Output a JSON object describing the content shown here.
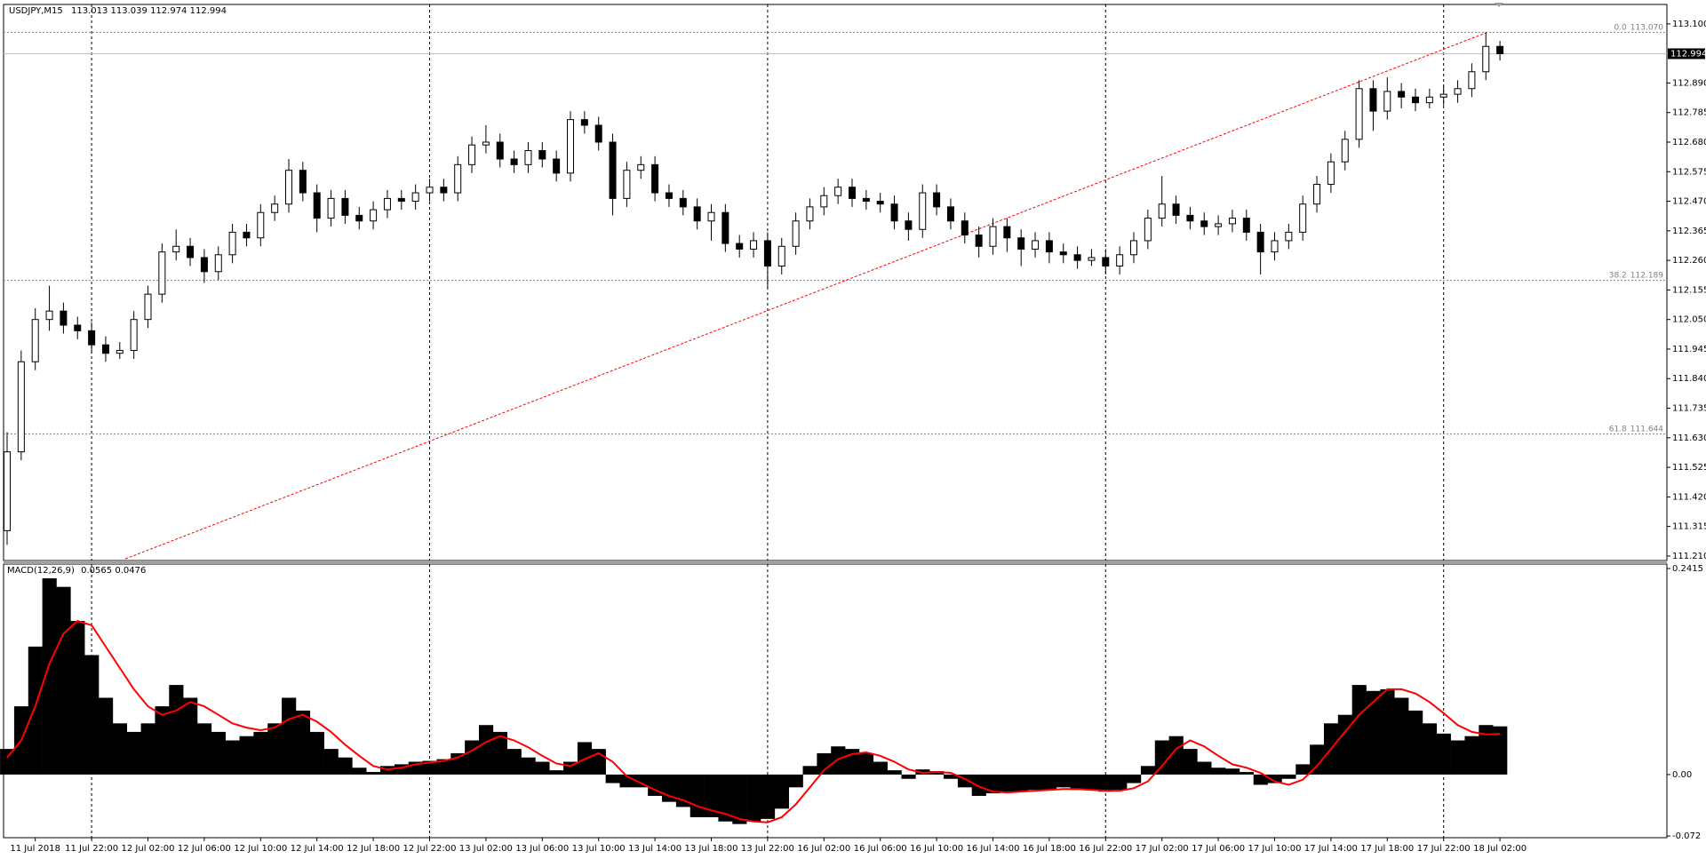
{
  "chart_data": [
    {
      "type": "candlestick",
      "symbol": "USDJPY,M15",
      "quote": [
        113.013,
        113.039,
        112.974,
        112.994
      ],
      "categories": [
        null,
        null,
        "11 Jul 2018",
        null,
        null,
        null,
        "11 Jul 22:00",
        null,
        null,
        null,
        "12 Jul 02:00",
        null,
        null,
        null,
        "12 Jul 06:00",
        null,
        null,
        null,
        "12 Jul 10:00",
        null,
        null,
        null,
        "12 Jul 14:00",
        null,
        null,
        null,
        "12 Jul 18:00",
        null,
        null,
        null,
        "12 Jul 22:00",
        null,
        null,
        null,
        "13 Jul 02:00",
        null,
        null,
        null,
        "13 Jul 06:00",
        null,
        null,
        null,
        "13 Jul 10:00",
        null,
        null,
        null,
        "13 Jul 14:00",
        null,
        null,
        null,
        "13 Jul 18:00",
        null,
        null,
        null,
        "13 Jul 22:00",
        null,
        null,
        null,
        "16 Jul 02:00",
        null,
        null,
        null,
        "16 Jul 06:00",
        null,
        null,
        null,
        "16 Jul 10:00",
        null,
        null,
        null,
        "16 Jul 14:00",
        null,
        null,
        null,
        "16 Jul 18:00",
        null,
        null,
        null,
        "16 Jul 22:00",
        null,
        null,
        null,
        "17 Jul 02:00",
        null,
        null,
        null,
        "17 Jul 06:00",
        null,
        null,
        null,
        "17 Jul 10:00",
        null,
        null,
        null,
        "17 Jul 14:00",
        null,
        null,
        null,
        "17 Jul 18:00",
        null,
        null,
        null,
        "17 Jul 22:00",
        null,
        null,
        null,
        "18 Jul 02:00"
      ],
      "open": [
        111.3,
        111.58,
        111.9,
        112.05,
        112.08,
        112.03,
        112.01,
        111.96,
        111.93,
        111.94,
        112.05,
        112.14,
        112.29,
        112.31,
        112.27,
        112.22,
        112.28,
        112.36,
        112.34,
        112.43,
        112.46,
        112.58,
        112.5,
        112.41,
        112.48,
        112.42,
        112.4,
        112.44,
        112.48,
        112.47,
        112.5,
        112.52,
        112.5,
        112.6,
        112.67,
        112.68,
        112.62,
        112.6,
        112.65,
        112.62,
        112.57,
        112.76,
        112.74,
        112.68,
        112.48,
        112.58,
        112.6,
        112.5,
        112.48,
        112.45,
        112.4,
        112.43,
        112.32,
        112.3,
        112.33,
        112.24,
        112.31,
        112.4,
        112.45,
        112.49,
        112.52,
        112.48,
        112.47,
        112.46,
        112.4,
        112.37,
        112.5,
        112.45,
        112.4,
        112.35,
        112.31,
        112.38,
        112.34,
        112.3,
        112.33,
        112.29,
        112.28,
        112.26,
        112.27,
        112.24,
        112.28,
        112.33,
        112.41,
        112.46,
        112.42,
        112.4,
        112.38,
        112.39,
        112.41,
        112.36,
        112.29,
        112.33,
        112.36,
        112.46,
        112.53,
        112.61,
        112.69,
        112.87,
        112.79,
        112.86,
        112.84,
        112.82,
        112.84,
        112.85,
        112.87,
        112.93,
        113.02
      ],
      "high": [
        111.65,
        111.94,
        112.09,
        112.17,
        112.11,
        112.06,
        112.04,
        111.99,
        111.97,
        112.08,
        112.17,
        112.32,
        112.37,
        112.34,
        112.3,
        112.31,
        112.39,
        112.39,
        112.46,
        112.49,
        112.62,
        112.61,
        112.53,
        112.51,
        112.51,
        112.45,
        112.47,
        112.51,
        112.51,
        112.53,
        112.55,
        112.55,
        112.63,
        112.7,
        112.74,
        112.71,
        112.65,
        112.68,
        112.68,
        112.65,
        112.79,
        112.79,
        112.77,
        112.71,
        112.61,
        112.63,
        112.63,
        112.53,
        112.51,
        112.48,
        112.46,
        112.46,
        112.35,
        112.36,
        112.36,
        112.34,
        112.43,
        112.48,
        112.52,
        112.55,
        112.55,
        112.51,
        112.5,
        112.49,
        112.43,
        112.53,
        112.53,
        112.48,
        112.43,
        112.38,
        112.41,
        112.41,
        112.37,
        112.36,
        112.36,
        112.32,
        112.31,
        112.3,
        112.3,
        112.31,
        112.36,
        112.44,
        112.56,
        112.49,
        112.45,
        112.43,
        112.42,
        112.44,
        112.44,
        112.39,
        112.36,
        112.39,
        112.49,
        112.56,
        112.64,
        112.72,
        112.9,
        112.9,
        112.91,
        112.89,
        112.87,
        112.87,
        112.88,
        112.9,
        112.96,
        113.07,
        113.04
      ],
      "low": [
        111.25,
        111.55,
        111.87,
        112.01,
        112.0,
        111.98,
        111.93,
        111.9,
        111.91,
        111.91,
        112.02,
        112.11,
        112.26,
        112.24,
        112.18,
        112.19,
        112.25,
        112.31,
        112.31,
        112.4,
        112.43,
        112.47,
        112.36,
        112.38,
        112.39,
        112.37,
        112.37,
        112.41,
        112.44,
        112.44,
        112.47,
        112.47,
        112.47,
        112.57,
        112.64,
        112.59,
        112.57,
        112.57,
        112.59,
        112.54,
        112.54,
        112.71,
        112.65,
        112.42,
        112.45,
        112.55,
        112.47,
        112.45,
        112.42,
        112.37,
        112.33,
        112.29,
        112.27,
        112.27,
        112.16,
        112.21,
        112.28,
        112.37,
        112.42,
        112.46,
        112.45,
        112.44,
        112.43,
        112.37,
        112.33,
        112.34,
        112.42,
        112.37,
        112.32,
        112.27,
        112.28,
        112.29,
        112.24,
        112.27,
        112.25,
        112.25,
        112.23,
        112.24,
        112.21,
        112.21,
        112.25,
        112.3,
        112.38,
        112.39,
        112.37,
        112.35,
        112.35,
        112.36,
        112.33,
        112.21,
        112.26,
        112.3,
        112.33,
        112.43,
        112.5,
        112.58,
        112.66,
        112.72,
        112.76,
        112.8,
        112.79,
        112.8,
        112.81,
        112.82,
        112.84,
        112.9,
        112.97
      ],
      "close": [
        111.58,
        111.9,
        112.05,
        112.08,
        112.03,
        112.01,
        111.96,
        111.93,
        111.94,
        112.05,
        112.14,
        112.29,
        112.31,
        112.27,
        112.22,
        112.28,
        112.36,
        112.34,
        112.43,
        112.46,
        112.58,
        112.5,
        112.41,
        112.48,
        112.42,
        112.4,
        112.44,
        112.48,
        112.47,
        112.5,
        112.52,
        112.5,
        112.6,
        112.67,
        112.68,
        112.62,
        112.6,
        112.65,
        112.62,
        112.57,
        112.76,
        112.74,
        112.68,
        112.48,
        112.58,
        112.6,
        112.5,
        112.48,
        112.45,
        112.4,
        112.43,
        112.32,
        112.3,
        112.33,
        112.24,
        112.31,
        112.4,
        112.45,
        112.49,
        112.52,
        112.48,
        112.47,
        112.46,
        112.4,
        112.37,
        112.5,
        112.45,
        112.4,
        112.35,
        112.31,
        112.38,
        112.34,
        112.3,
        112.33,
        112.29,
        112.28,
        112.26,
        112.27,
        112.24,
        112.28,
        112.33,
        112.41,
        112.46,
        112.42,
        112.4,
        112.38,
        112.39,
        112.41,
        112.36,
        112.29,
        112.33,
        112.36,
        112.46,
        112.53,
        112.61,
        112.69,
        112.87,
        112.79,
        112.86,
        112.84,
        112.82,
        112.84,
        112.85,
        112.87,
        112.93,
        113.02,
        112.994
      ],
      "up_color": "#ffffff",
      "down_color": "#000000",
      "ylim": [
        111.194,
        113.169
      ],
      "yticks": [
        {
          "value": 113.1,
          "label": "113.100"
        },
        {
          "value": 112.89,
          "label": "112.890"
        },
        {
          "value": 112.785,
          "label": "112.785"
        },
        {
          "value": 112.68,
          "label": "112.680"
        },
        {
          "value": 112.575,
          "label": "112.575"
        },
        {
          "value": 112.47,
          "label": "112.470"
        },
        {
          "value": 112.365,
          "label": "112.365"
        },
        {
          "value": 112.26,
          "label": "112.260"
        },
        {
          "value": 112.155,
          "label": "112.155"
        },
        {
          "value": 112.05,
          "label": "112.050"
        },
        {
          "value": 111.945,
          "label": "111.945"
        },
        {
          "value": 111.84,
          "label": "111.840"
        },
        {
          "value": 111.735,
          "label": "111.735"
        },
        {
          "value": 111.63,
          "label": "111.630"
        },
        {
          "value": 111.525,
          "label": "111.525"
        },
        {
          "value": 111.42,
          "label": "111.420"
        },
        {
          "value": 111.315,
          "label": "111.315"
        },
        {
          "value": 111.21,
          "label": "111.210"
        }
      ],
      "current_price": 112.994,
      "fibo": [
        {
          "level": {
            "value": 0,
            "label": "0.0"
          },
          "price": {
            "value": 113.07,
            "label": "113.070"
          }
        },
        {
          "level": 38.2,
          "price": 112.189
        },
        {
          "level": 61.8,
          "price": 111.644
        }
      ],
      "trendline": {
        "x": [
          8.4,
          105.1
        ],
        "y": [
          111.2,
          113.07
        ],
        "color": "#ff0000"
      },
      "grid": true
    },
    {
      "type": "macd",
      "name": "MACD(12,26,9)",
      "readout": [
        0.0565,
        0.0476
      ],
      "series": [
        {
          "name": "MACD",
          "color": "#000000",
          "values": [
            0.03,
            0.08,
            0.15,
            0.23,
            0.22,
            0.18,
            0.14,
            0.09,
            0.06,
            0.05,
            0.06,
            0.08,
            0.105,
            0.09,
            0.06,
            0.05,
            0.04,
            0.045,
            0.05,
            0.06,
            0.09,
            0.075,
            0.05,
            0.03,
            0.02,
            0.008,
            0.003,
            0.01,
            0.012,
            0.015,
            0.016,
            0.018,
            0.025,
            0.04,
            0.058,
            0.05,
            0.03,
            0.02,
            0.015,
            0.005,
            0.015,
            0.038,
            0.03,
            -0.01,
            -0.015,
            -0.015,
            -0.025,
            -0.032,
            -0.038,
            -0.05,
            -0.05,
            -0.055,
            -0.058,
            -0.055,
            -0.052,
            -0.04,
            -0.015,
            0.01,
            0.025,
            0.033,
            0.03,
            0.025,
            0.015,
            0.005,
            -0.005,
            0.006,
            0.004,
            -0.005,
            -0.015,
            -0.025,
            -0.022,
            -0.02,
            -0.02,
            -0.018,
            -0.018,
            -0.015,
            -0.018,
            -0.018,
            -0.02,
            -0.018,
            -0.01,
            0.01,
            0.04,
            0.045,
            0.03,
            0.015,
            0.008,
            0.007,
            0.003,
            -0.012,
            -0.01,
            -0.005,
            0.012,
            0.035,
            0.06,
            0.07,
            0.105,
            0.098,
            0.1,
            0.09,
            0.075,
            0.06,
            0.048,
            0.04,
            0.045,
            0.058,
            0.0565
          ]
        },
        {
          "name": "Signal",
          "color": "#ff0000",
          "values": [
            0.02,
            0.04,
            0.08,
            0.13,
            0.165,
            0.18,
            0.175,
            0.15,
            0.125,
            0.1,
            0.08,
            0.07,
            0.075,
            0.085,
            0.08,
            0.07,
            0.06,
            0.055,
            0.052,
            0.055,
            0.065,
            0.07,
            0.062,
            0.05,
            0.035,
            0.022,
            0.01,
            0.006,
            0.008,
            0.012,
            0.014,
            0.016,
            0.02,
            0.028,
            0.038,
            0.045,
            0.04,
            0.032,
            0.022,
            0.013,
            0.01,
            0.018,
            0.025,
            0.015,
            -0.002,
            -0.01,
            -0.018,
            -0.025,
            -0.03,
            -0.037,
            -0.042,
            -0.046,
            -0.052,
            -0.055,
            -0.056,
            -0.05,
            -0.035,
            -0.015,
            0.005,
            0.018,
            0.024,
            0.026,
            0.022,
            0.015,
            0.006,
            0.002,
            0.003,
            0.002,
            -0.005,
            -0.014,
            -0.02,
            -0.021,
            -0.02,
            -0.019,
            -0.018,
            -0.017,
            -0.017,
            -0.018,
            -0.019,
            -0.019,
            -0.016,
            -0.008,
            0.01,
            0.03,
            0.04,
            0.033,
            0.022,
            0.012,
            0.008,
            0.002,
            -0.008,
            -0.012,
            -0.006,
            0.01,
            0.03,
            0.05,
            0.07,
            0.085,
            0.1,
            0.1,
            0.095,
            0.085,
            0.072,
            0.058,
            0.05,
            0.047,
            0.0476
          ]
        }
      ],
      "y2lim": [
        -0.074,
        0.2467
      ],
      "y2ticks": [
        0.2415,
        {
          "value": 0,
          "label": "0.00"
        },
        -0.072
      ]
    }
  ]
}
